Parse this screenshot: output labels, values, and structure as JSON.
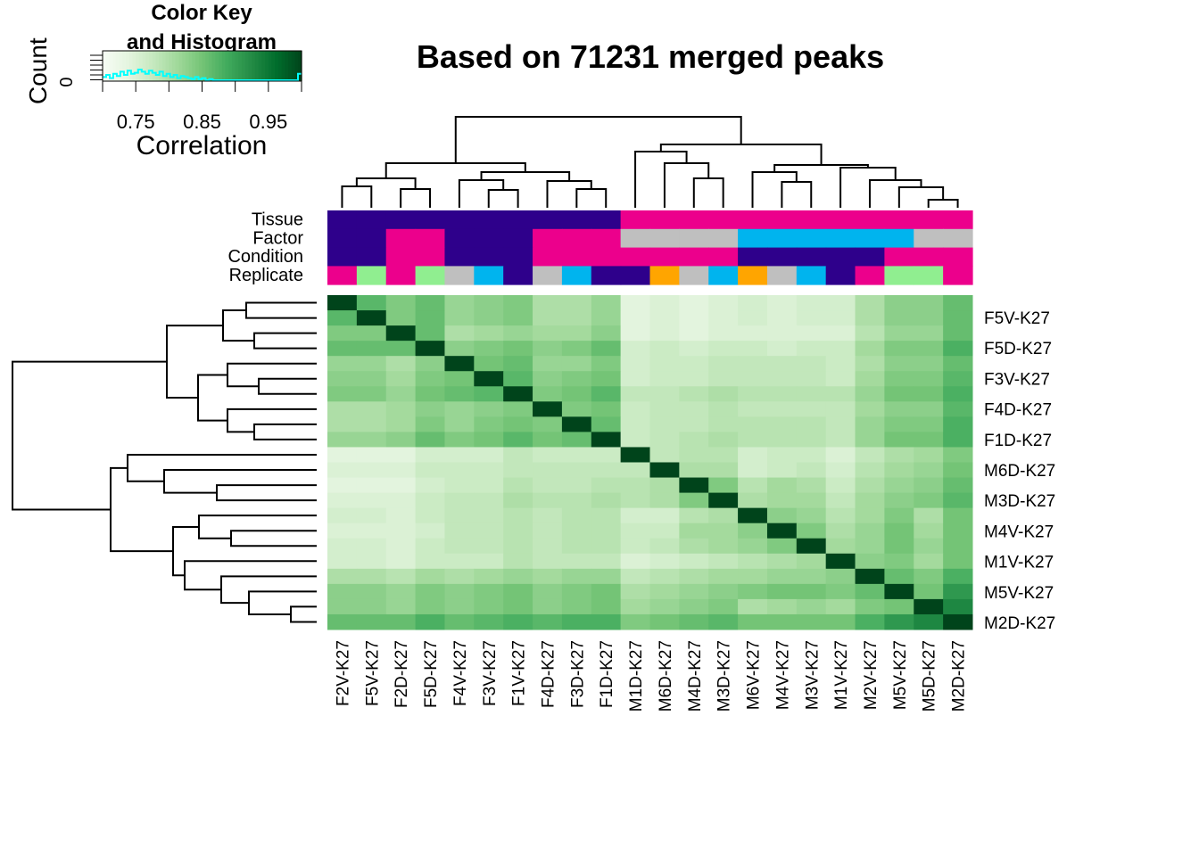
{
  "chart_data": {
    "type": "heatmap",
    "title": "Based on 71231 merged peaks",
    "color_key": {
      "title_line1": "Color Key",
      "title_line2": "and Histogram",
      "ylabel": "Count",
      "ytick": "0",
      "xlabel": "Correlation",
      "ticks": [
        "0.75",
        "0.85",
        "0.95"
      ],
      "tick_values": [
        0.75,
        0.85,
        0.95
      ],
      "range": [
        0.7,
        1.0
      ],
      "low_color": "#f7fcf5",
      "high_color": "#00441b",
      "histogram_color": "#00ffff"
    },
    "annotation_rows": [
      "Tissue",
      "Factor",
      "Condition",
      "Replicate"
    ],
    "palette": {
      "navy": "#2e008b",
      "magenta": "#ec008c",
      "gray": "#bfbfbf",
      "cyan": "#00b4ee",
      "lightgreen": "#90ee90",
      "orange": "#ffa500"
    },
    "columns": [
      "F2V-K27",
      "F5V-K27",
      "F2D-K27",
      "F5D-K27",
      "F4V-K27",
      "F3V-K27",
      "F1V-K27",
      "F4D-K27",
      "F3D-K27",
      "F1D-K27",
      "M1D-K27",
      "M6D-K27",
      "M4D-K27",
      "M3D-K27",
      "M6V-K27",
      "M4V-K27",
      "M3V-K27",
      "M1V-K27",
      "M2V-K27",
      "M5V-K27",
      "M5D-K27",
      "M2D-K27"
    ],
    "row_labels": [
      "",
      "F5V-K27",
      "F5D-K27",
      "F3V-K27",
      "F4D-K27",
      "F1D-K27",
      "M6D-K27",
      "M3D-K27",
      "M4V-K27",
      "M1V-K27",
      "M5V-K27",
      "M2D-K27"
    ],
    "annotations": {
      "Tissue": [
        "navy",
        "navy",
        "navy",
        "navy",
        "navy",
        "navy",
        "navy",
        "navy",
        "navy",
        "navy",
        "magenta",
        "magenta",
        "magenta",
        "magenta",
        "magenta",
        "magenta",
        "magenta",
        "magenta",
        "magenta",
        "magenta",
        "magenta",
        "magenta"
      ],
      "Factor": [
        "navy",
        "navy",
        "magenta",
        "magenta",
        "navy",
        "navy",
        "navy",
        "magenta",
        "magenta",
        "magenta",
        "gray",
        "gray",
        "gray",
        "gray",
        "cyan",
        "cyan",
        "cyan",
        "cyan",
        "cyan",
        "cyan",
        "gray",
        "gray"
      ],
      "Condition": [
        "navy",
        "navy",
        "magenta",
        "magenta",
        "navy",
        "navy",
        "navy",
        "magenta",
        "magenta",
        "magenta",
        "magenta",
        "magenta",
        "magenta",
        "magenta",
        "navy",
        "navy",
        "navy",
        "navy",
        "navy",
        "magenta",
        "magenta",
        "magenta"
      ],
      "Replicate": [
        "magenta",
        "lightgreen",
        "magenta",
        "lightgreen",
        "gray",
        "cyan",
        "navy",
        "gray",
        "cyan",
        "navy",
        "navy",
        "orange",
        "gray",
        "cyan",
        "orange",
        "gray",
        "cyan",
        "navy",
        "magenta",
        "lightgreen",
        "lightgreen",
        "magenta"
      ]
    },
    "matrix": [
      [
        1.0,
        0.87,
        0.84,
        0.86,
        0.82,
        0.83,
        0.84,
        0.8,
        0.8,
        0.82,
        0.74,
        0.75,
        0.74,
        0.75,
        0.76,
        0.75,
        0.76,
        0.76,
        0.8,
        0.83,
        0.83,
        0.86
      ],
      [
        0.87,
        1.0,
        0.84,
        0.86,
        0.82,
        0.83,
        0.84,
        0.8,
        0.8,
        0.82,
        0.74,
        0.75,
        0.74,
        0.75,
        0.76,
        0.75,
        0.76,
        0.76,
        0.8,
        0.83,
        0.83,
        0.86
      ],
      [
        0.84,
        0.84,
        1.0,
        0.86,
        0.8,
        0.81,
        0.82,
        0.81,
        0.81,
        0.83,
        0.74,
        0.75,
        0.74,
        0.75,
        0.75,
        0.75,
        0.75,
        0.75,
        0.79,
        0.82,
        0.82,
        0.86
      ],
      [
        0.86,
        0.86,
        0.86,
        1.0,
        0.83,
        0.84,
        0.85,
        0.83,
        0.84,
        0.86,
        0.76,
        0.77,
        0.76,
        0.77,
        0.77,
        0.76,
        0.77,
        0.77,
        0.81,
        0.84,
        0.84,
        0.88
      ],
      [
        0.82,
        0.82,
        0.8,
        0.83,
        1.0,
        0.85,
        0.86,
        0.82,
        0.82,
        0.84,
        0.76,
        0.77,
        0.77,
        0.78,
        0.78,
        0.78,
        0.78,
        0.77,
        0.8,
        0.83,
        0.83,
        0.86
      ],
      [
        0.83,
        0.83,
        0.81,
        0.84,
        0.85,
        1.0,
        0.87,
        0.83,
        0.84,
        0.85,
        0.76,
        0.77,
        0.77,
        0.78,
        0.78,
        0.78,
        0.78,
        0.77,
        0.81,
        0.84,
        0.84,
        0.87
      ],
      [
        0.84,
        0.84,
        0.82,
        0.85,
        0.86,
        0.87,
        1.0,
        0.84,
        0.85,
        0.87,
        0.78,
        0.78,
        0.79,
        0.8,
        0.79,
        0.79,
        0.79,
        0.79,
        0.82,
        0.85,
        0.85,
        0.88
      ],
      [
        0.8,
        0.8,
        0.81,
        0.83,
        0.82,
        0.83,
        0.84,
        1.0,
        0.84,
        0.85,
        0.77,
        0.78,
        0.78,
        0.79,
        0.78,
        0.78,
        0.78,
        0.78,
        0.81,
        0.83,
        0.83,
        0.87
      ],
      [
        0.8,
        0.8,
        0.81,
        0.84,
        0.82,
        0.84,
        0.85,
        0.84,
        1.0,
        0.86,
        0.77,
        0.78,
        0.78,
        0.79,
        0.79,
        0.79,
        0.79,
        0.78,
        0.82,
        0.84,
        0.84,
        0.88
      ],
      [
        0.82,
        0.82,
        0.83,
        0.86,
        0.84,
        0.85,
        0.87,
        0.85,
        0.86,
        1.0,
        0.77,
        0.78,
        0.79,
        0.8,
        0.79,
        0.79,
        0.79,
        0.78,
        0.82,
        0.85,
        0.85,
        0.88
      ],
      [
        0.74,
        0.74,
        0.74,
        0.76,
        0.76,
        0.76,
        0.78,
        0.77,
        0.77,
        0.77,
        1.0,
        0.78,
        0.79,
        0.79,
        0.76,
        0.77,
        0.77,
        0.75,
        0.78,
        0.8,
        0.81,
        0.84
      ],
      [
        0.75,
        0.75,
        0.75,
        0.77,
        0.77,
        0.77,
        0.78,
        0.78,
        0.78,
        0.78,
        0.78,
        1.0,
        0.8,
        0.8,
        0.76,
        0.77,
        0.78,
        0.76,
        0.79,
        0.81,
        0.82,
        0.85
      ],
      [
        0.74,
        0.74,
        0.74,
        0.76,
        0.77,
        0.77,
        0.79,
        0.78,
        0.78,
        0.79,
        0.79,
        0.8,
        1.0,
        0.84,
        0.79,
        0.81,
        0.8,
        0.77,
        0.8,
        0.82,
        0.83,
        0.86
      ],
      [
        0.75,
        0.75,
        0.75,
        0.77,
        0.78,
        0.78,
        0.8,
        0.79,
        0.79,
        0.8,
        0.79,
        0.8,
        0.84,
        1.0,
        0.8,
        0.81,
        0.81,
        0.78,
        0.81,
        0.83,
        0.84,
        0.87
      ],
      [
        0.76,
        0.76,
        0.75,
        0.77,
        0.78,
        0.78,
        0.79,
        0.78,
        0.79,
        0.79,
        0.76,
        0.76,
        0.79,
        0.8,
        1.0,
        0.83,
        0.82,
        0.79,
        0.81,
        0.84,
        0.8,
        0.85
      ],
      [
        0.75,
        0.75,
        0.75,
        0.76,
        0.78,
        0.78,
        0.79,
        0.78,
        0.79,
        0.79,
        0.77,
        0.77,
        0.81,
        0.81,
        0.83,
        1.0,
        0.84,
        0.8,
        0.82,
        0.85,
        0.81,
        0.85
      ],
      [
        0.76,
        0.76,
        0.75,
        0.77,
        0.78,
        0.78,
        0.79,
        0.78,
        0.79,
        0.79,
        0.77,
        0.78,
        0.8,
        0.81,
        0.82,
        0.84,
        1.0,
        0.81,
        0.82,
        0.85,
        0.82,
        0.85
      ],
      [
        0.76,
        0.76,
        0.75,
        0.77,
        0.77,
        0.77,
        0.79,
        0.78,
        0.78,
        0.78,
        0.75,
        0.76,
        0.77,
        0.78,
        0.79,
        0.8,
        0.81,
        1.0,
        0.83,
        0.84,
        0.81,
        0.85
      ],
      [
        0.8,
        0.8,
        0.79,
        0.81,
        0.8,
        0.81,
        0.82,
        0.81,
        0.82,
        0.82,
        0.78,
        0.79,
        0.8,
        0.81,
        0.81,
        0.82,
        0.82,
        0.83,
        1.0,
        0.86,
        0.84,
        0.88
      ],
      [
        0.83,
        0.83,
        0.82,
        0.84,
        0.83,
        0.84,
        0.85,
        0.83,
        0.84,
        0.85,
        0.8,
        0.81,
        0.82,
        0.83,
        0.84,
        0.85,
        0.85,
        0.84,
        0.86,
        1.0,
        0.85,
        0.91
      ],
      [
        0.83,
        0.83,
        0.82,
        0.84,
        0.83,
        0.84,
        0.85,
        0.83,
        0.84,
        0.85,
        0.81,
        0.82,
        0.83,
        0.84,
        0.8,
        0.81,
        0.82,
        0.81,
        0.84,
        0.85,
        1.0,
        0.93
      ],
      [
        0.86,
        0.86,
        0.86,
        0.88,
        0.86,
        0.87,
        0.88,
        0.87,
        0.88,
        0.88,
        0.84,
        0.85,
        0.86,
        0.87,
        0.85,
        0.85,
        0.85,
        0.85,
        0.88,
        0.91,
        0.93,
        1.0
      ]
    ],
    "histogram": [
      3,
      5,
      2,
      6,
      4,
      8,
      5,
      9,
      6,
      7,
      10,
      8,
      6,
      9,
      7,
      5,
      8,
      4,
      6,
      3,
      5,
      2,
      4,
      3,
      2,
      1,
      3,
      1,
      2,
      0,
      1,
      0,
      0,
      0,
      0,
      0,
      0,
      0,
      0,
      0,
      0,
      0,
      0,
      0,
      0,
      0,
      0,
      0,
      0,
      0,
      0,
      0,
      0,
      0,
      0,
      6
    ]
  }
}
